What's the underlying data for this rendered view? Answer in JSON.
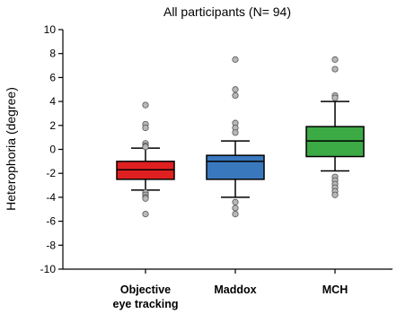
{
  "chart_data": {
    "type": "box",
    "title": "All participants (N= 94)",
    "xlabel": "",
    "ylabel": "Heterophoria (degree)",
    "ylim": [
      -10,
      10
    ],
    "yticks": [
      -10,
      -8,
      -6,
      -4,
      -2,
      0,
      2,
      4,
      6,
      8,
      10
    ],
    "grid": false,
    "categories": [
      "Objective eye tracking",
      "Maddox",
      "MCH"
    ],
    "category_lines": [
      [
        "Objective",
        "eye tracking"
      ],
      [
        "Maddox"
      ],
      [
        "MCH"
      ]
    ],
    "series": [
      {
        "color": "#e02020",
        "q1": -2.5,
        "median": -1.7,
        "q3": -1.0,
        "whisker_low": -3.4,
        "whisker_high": 0.1,
        "outliers": [
          3.7,
          2.1,
          1.8,
          0.5,
          0.3,
          0.2,
          -3.6,
          -3.8,
          -4.0,
          -4.1,
          -5.4
        ]
      },
      {
        "color": "#3a78bd",
        "q1": -2.5,
        "median": -1.0,
        "q3": -0.5,
        "whisker_low": -4.0,
        "whisker_high": 0.7,
        "outliers": [
          7.5,
          5.0,
          4.5,
          2.2,
          1.8,
          1.4,
          -4.4,
          -4.9,
          -5.4
        ]
      },
      {
        "color": "#3caa45",
        "q1": -0.6,
        "median": 0.7,
        "q3": 1.9,
        "whisker_low": -1.8,
        "whisker_high": 4.0,
        "outliers": [
          7.5,
          6.7,
          4.5,
          4.3,
          -2.3,
          -2.6,
          -2.9,
          -3.2,
          -3.5,
          -3.8
        ]
      }
    ]
  }
}
